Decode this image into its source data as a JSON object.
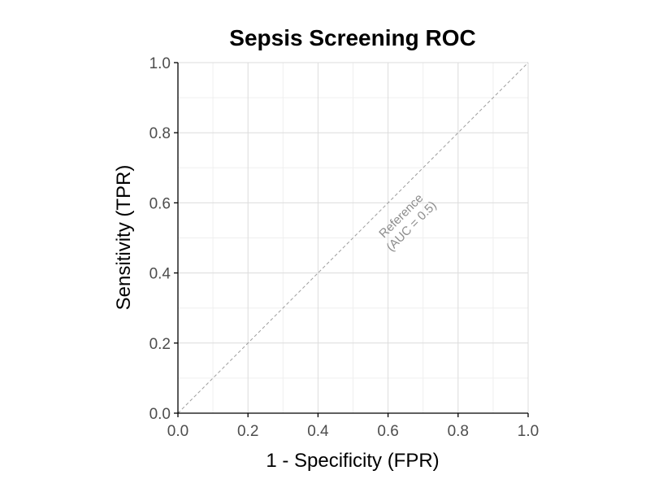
{
  "chart_data": {
    "type": "line",
    "title": "Sepsis Screening ROC",
    "xlabel": "1 - Specificity (FPR)",
    "ylabel": "Sensitivity (TPR)",
    "xlim": [
      0,
      1
    ],
    "ylim": [
      0,
      1
    ],
    "x_ticks": [
      "0.0",
      "0.2",
      "0.4",
      "0.6",
      "0.8",
      "1.0"
    ],
    "y_ticks": [
      "0.0",
      "0.2",
      "0.4",
      "0.6",
      "0.8",
      "1.0"
    ],
    "grid": true,
    "series": [
      {
        "name": "Reference",
        "style": "dashed",
        "color": "#9e9e9e",
        "x": [
          0,
          1
        ],
        "y": [
          0,
          1
        ]
      }
    ],
    "annotations": [
      {
        "line1": "Reference",
        "line2": "(AUC = 0.5)",
        "x": 0.65,
        "y": 0.55
      }
    ],
    "colors": {
      "grid_major": "#dcdcdc",
      "grid_minor": "#efefef",
      "axis": "#000000",
      "reference": "#9e9e9e",
      "annotation": "#8c8c8c"
    }
  }
}
